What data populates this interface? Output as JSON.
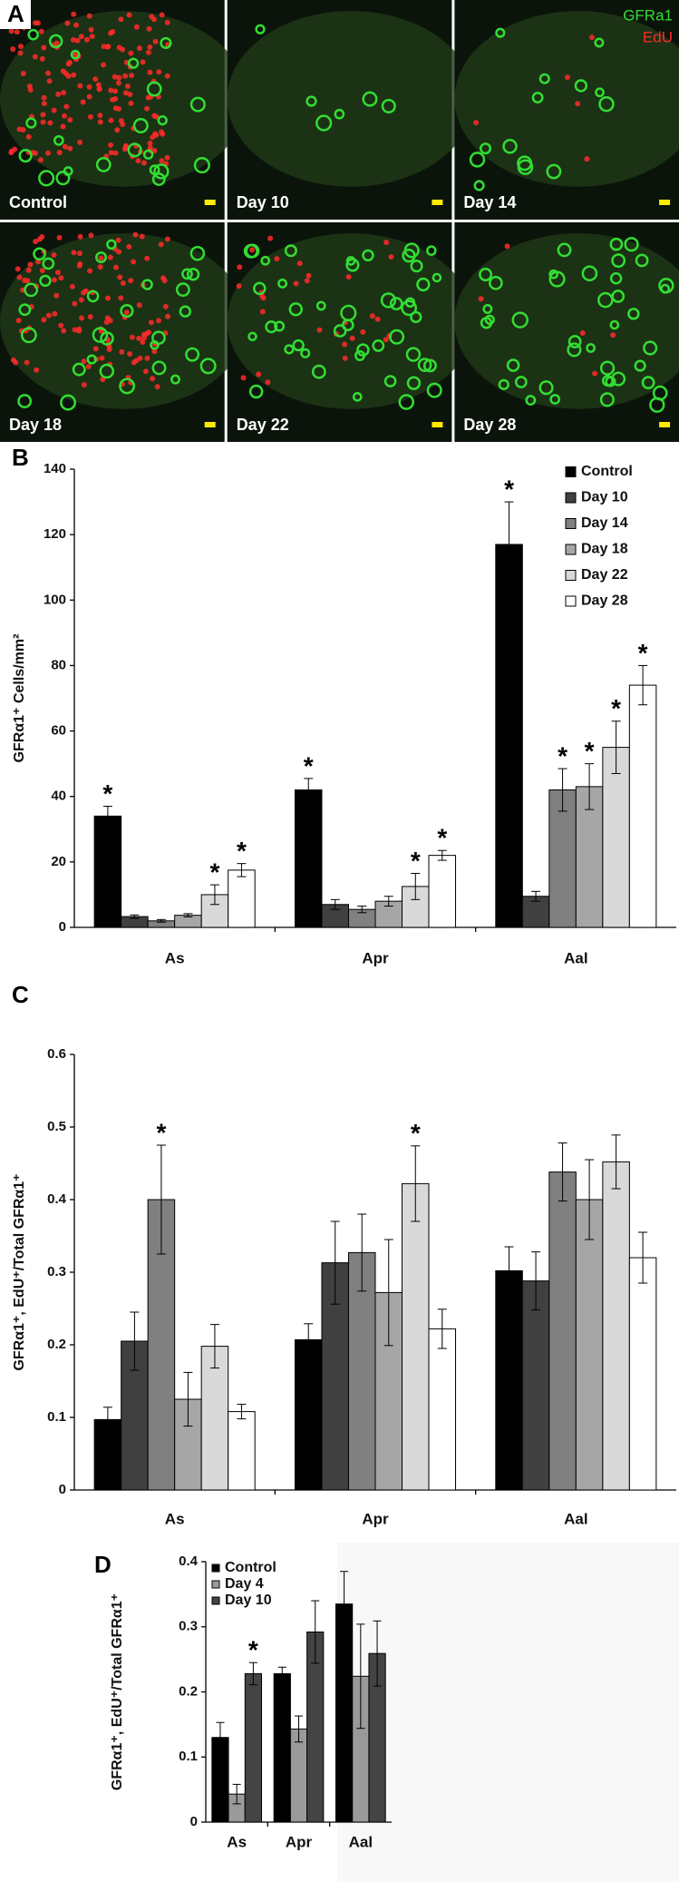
{
  "panel_a": {
    "label": "A",
    "channels": [
      {
        "name": "GFRa1",
        "color": "#33dd33"
      },
      {
        "name": "EdU",
        "color": "#ff2a2a"
      }
    ],
    "tiles": [
      "Control",
      "Day 10",
      "Day 14",
      "Day 18",
      "Day 22",
      "Day 28"
    ]
  },
  "chart_data": [
    {
      "type": "bar",
      "panel_label": "B",
      "ylabel": "GFRα1⁺ Cells/mm²",
      "categories": [
        "As",
        "Apr",
        "Aal"
      ],
      "ylim": [
        0,
        140
      ],
      "yticks": [
        0,
        20,
        40,
        60,
        80,
        100,
        120,
        140
      ],
      "legend": "top-right",
      "series": [
        {
          "name": "Control",
          "color": "#000000",
          "values": [
            34,
            42,
            117
          ],
          "errors": [
            3,
            3.5,
            13
          ],
          "markers": [
            "*",
            "*",
            "*"
          ]
        },
        {
          "name": "Day 10",
          "color": "#404040",
          "values": [
            3.3,
            7,
            9.5
          ],
          "errors": [
            0.5,
            1.5,
            1.5
          ],
          "markers": [
            null,
            null,
            null
          ]
        },
        {
          "name": "Day 14",
          "color": "#808080",
          "values": [
            2,
            5.5,
            42
          ],
          "errors": [
            0.4,
            1,
            6.5
          ],
          "markers": [
            null,
            null,
            "*"
          ]
        },
        {
          "name": "Day 18",
          "color": "#a6a6a6",
          "values": [
            3.7,
            8,
            43
          ],
          "errors": [
            0.5,
            1.5,
            7
          ],
          "markers": [
            null,
            null,
            "*"
          ]
        },
        {
          "name": "Day 22",
          "color": "#d9d9d9",
          "values": [
            10,
            12.5,
            55
          ],
          "errors": [
            3,
            4,
            8
          ],
          "markers": [
            "*",
            "*",
            "*"
          ]
        },
        {
          "name": "Day 28",
          "color": "#ffffff",
          "values": [
            17.5,
            22,
            74
          ],
          "errors": [
            2,
            1.5,
            6
          ],
          "markers": [
            "*",
            "*",
            "*"
          ]
        }
      ]
    },
    {
      "type": "bar",
      "panel_label": "C",
      "ylabel": "GFRα1⁺, EdU⁺/Total GFRα1⁺",
      "categories": [
        "As",
        "Apr",
        "Aal"
      ],
      "ylim": [
        0,
        0.6
      ],
      "yticks": [
        0,
        0.1,
        0.2,
        0.3,
        0.4,
        0.5,
        0.6
      ],
      "series": [
        {
          "color": "#000000",
          "values": [
            0.097,
            0.207,
            0.302
          ],
          "errors": [
            0.017,
            0.022,
            0.033
          ],
          "markers": [
            null,
            null,
            null
          ]
        },
        {
          "color": "#404040",
          "values": [
            0.205,
            0.313,
            0.288
          ],
          "errors": [
            0.04,
            0.057,
            0.04
          ],
          "markers": [
            null,
            null,
            null
          ]
        },
        {
          "color": "#808080",
          "values": [
            0.4,
            0.327,
            0.438
          ],
          "errors": [
            0.075,
            0.053,
            0.04
          ],
          "markers": [
            "*",
            null,
            null
          ]
        },
        {
          "color": "#a6a6a6",
          "values": [
            0.125,
            0.272,
            0.4
          ],
          "errors": [
            0.037,
            0.073,
            0.055
          ],
          "markers": [
            null,
            null,
            null
          ]
        },
        {
          "color": "#d9d9d9",
          "values": [
            0.198,
            0.422,
            0.452
          ],
          "errors": [
            0.03,
            0.052,
            0.037
          ],
          "markers": [
            null,
            "*",
            null
          ]
        },
        {
          "color": "#ffffff",
          "values": [
            0.108,
            0.222,
            0.32
          ],
          "errors": [
            0.01,
            0.027,
            0.035
          ],
          "markers": [
            null,
            null,
            null
          ]
        }
      ]
    },
    {
      "type": "bar",
      "panel_label": "D",
      "ylabel": "GFRα1⁺, EdU⁺/Total GFRα1⁺",
      "categories": [
        "As",
        "Apr",
        "Aal"
      ],
      "ylim": [
        0,
        0.4
      ],
      "yticks": [
        0,
        0.1,
        0.2,
        0.3,
        0.4
      ],
      "legend": "top-left",
      "series": [
        {
          "name": "Control",
          "color": "#000000",
          "values": [
            0.13,
            0.228,
            0.335
          ],
          "errors": [
            0.023,
            0.01,
            0.05
          ],
          "markers": [
            null,
            null,
            null
          ]
        },
        {
          "name": "Day 4",
          "color": "#9a9a9a",
          "values": [
            0.043,
            0.143,
            0.224
          ],
          "errors": [
            0.015,
            0.02,
            0.08
          ],
          "markers": [
            null,
            null,
            null
          ]
        },
        {
          "name": "Day 10",
          "color": "#444444",
          "values": [
            0.228,
            0.292,
            0.259
          ],
          "errors": [
            0.017,
            0.048,
            0.05
          ],
          "markers": [
            "*",
            null,
            null
          ]
        }
      ]
    }
  ]
}
